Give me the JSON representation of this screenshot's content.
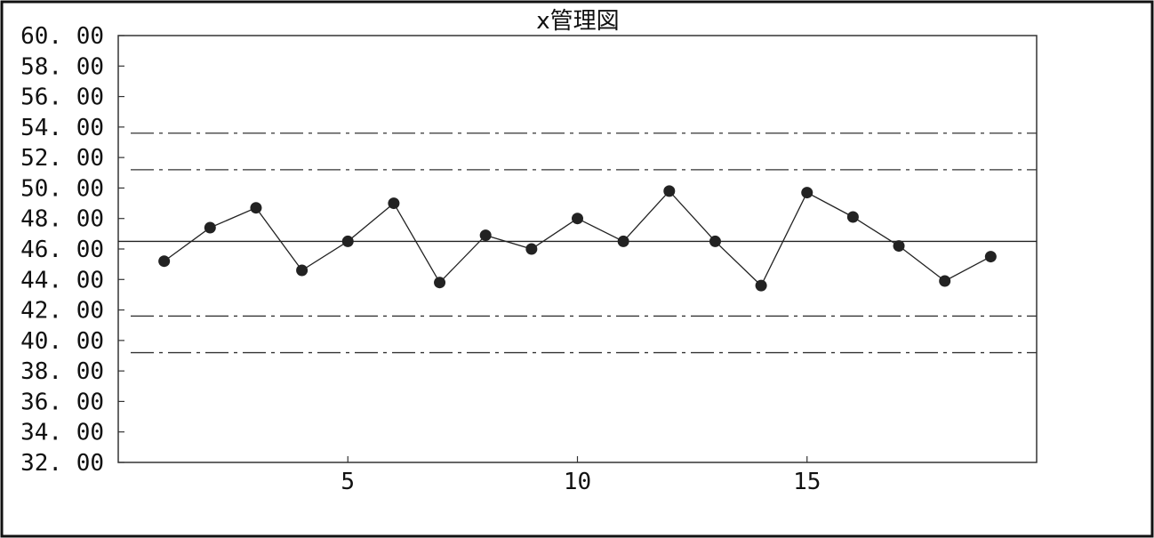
{
  "chart_data": {
    "type": "line",
    "title": "x管理図",
    "x": [
      1,
      2,
      3,
      4,
      5,
      6,
      7,
      8,
      9,
      10,
      11,
      12,
      13,
      14,
      15,
      16,
      17,
      18,
      19
    ],
    "series": [
      {
        "values": [
          45.2,
          47.4,
          48.7,
          44.6,
          46.5,
          49.0,
          43.8,
          46.9,
          46.0,
          48.0,
          46.5,
          49.8,
          46.5,
          43.6,
          49.7,
          48.1,
          46.2,
          43.9,
          45.5
        ]
      }
    ],
    "center_line": 46.5,
    "control_lines": [
      53.6,
      51.2,
      41.6,
      39.2
    ],
    "xlim": [
      0,
      20
    ],
    "ylim": [
      32,
      60
    ],
    "xticks": [
      5,
      10,
      15
    ],
    "xtick_labels": [
      "5",
      "10",
      "15"
    ],
    "yticks": [
      60,
      58,
      56,
      54,
      52,
      50,
      48,
      46,
      44,
      42,
      40,
      38,
      36,
      34,
      32
    ],
    "ytick_labels": [
      "60. 00",
      "58. 00",
      "56. 00",
      "54. 00",
      "52. 00",
      "50. 00",
      "48. 00",
      "46. 00",
      "44. 00",
      "42. 00",
      "40. 00",
      "38. 00",
      "36. 00",
      "34. 00",
      "32. 00"
    ],
    "grid": false,
    "colors": {
      "line": "#222222",
      "marker": "#222222",
      "frame": "#111111"
    }
  }
}
